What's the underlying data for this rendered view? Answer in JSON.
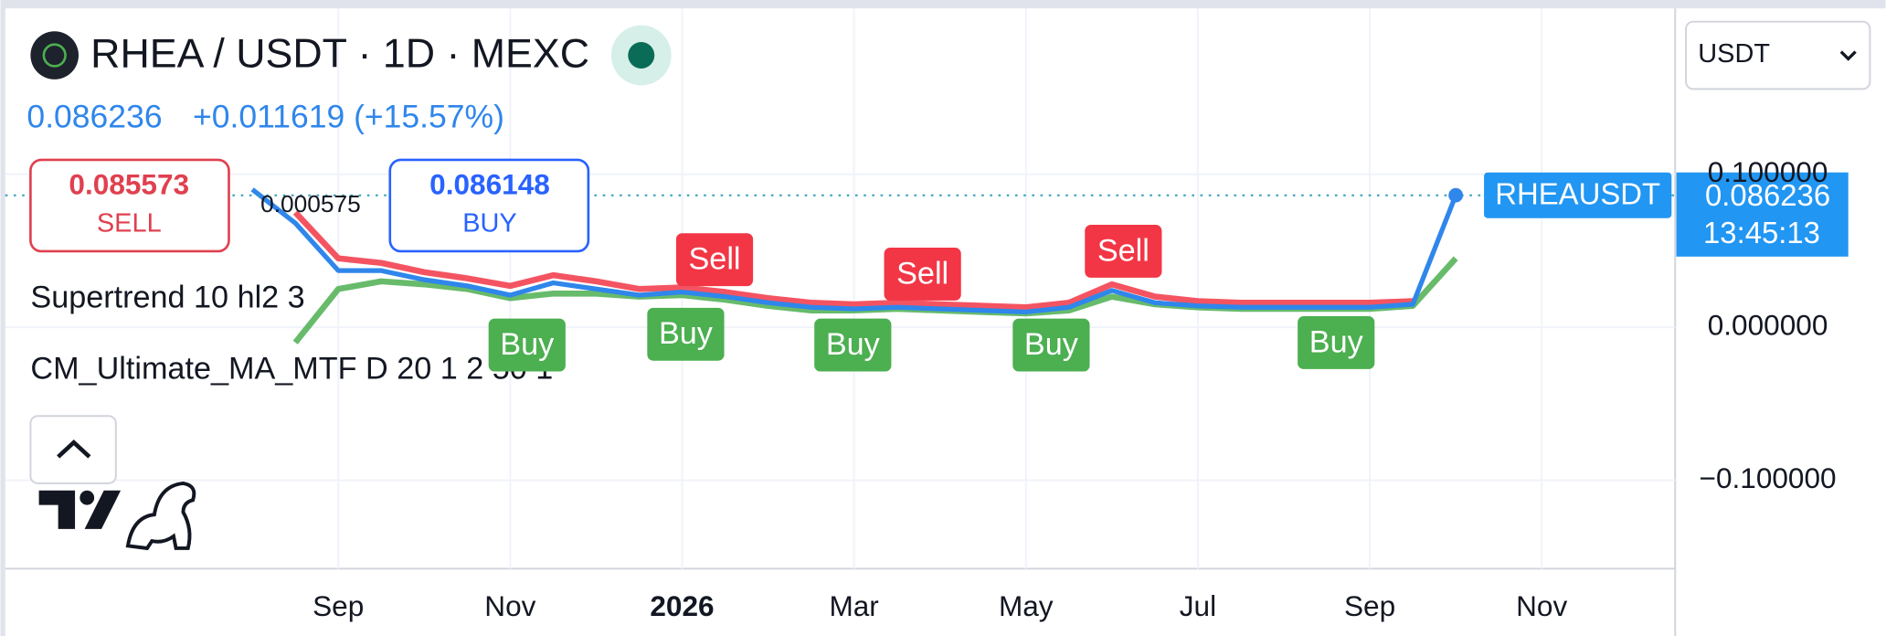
{
  "header": {
    "symbol": "RHEA / USDT · 1D · MEXC",
    "change": "+0.011619 (+15.57%)"
  },
  "order": {
    "sell_price": "0.085573",
    "sell": "SELL",
    "spread": "0.000575",
    "buy_price": "0.086148",
    "buy": "BUY"
  },
  "currency": "USDT",
  "countdown": "13:45:13",
  "chart_data": {
    "type": "line",
    "categories": [
      null,
      null,
      "Sep",
      null,
      null,
      null,
      "Nov",
      null,
      null,
      null,
      "2026",
      null,
      null,
      null,
      "Mar",
      null,
      null,
      null,
      "May",
      null,
      null,
      null,
      "Jul",
      null,
      null,
      null,
      "Sep",
      null,
      null,
      null,
      "Nov",
      null
    ],
    "series": [
      {
        "name": "RHEAUSDT",
        "color": "#2f86eb",
        "values": [
          0.09,
          0.068,
          0.037,
          0.037,
          0.031,
          0.027,
          0.021,
          0.029,
          0.025,
          0.021,
          0.023,
          0.02,
          0.016,
          0.013,
          0.012,
          0.013,
          0.012,
          0.011,
          0.01,
          0.013,
          0.024,
          0.016,
          0.014,
          0.013,
          0.013,
          0.013,
          0.013,
          0.015,
          0.086236,
          null,
          null,
          null
        ]
      },
      {
        "name": "Supertrend 10 hl2 3",
        "color": "#f23645",
        "values": [
          null,
          0.075,
          0.045,
          0.042,
          0.036,
          0.032,
          0.027,
          0.034,
          0.03,
          0.025,
          0.026,
          0.023,
          0.019,
          0.016,
          0.015,
          0.016,
          0.015,
          0.014,
          0.013,
          0.016,
          0.028,
          0.02,
          0.017,
          0.016,
          0.016,
          0.016,
          0.016,
          0.017,
          null,
          null,
          null,
          null
        ]
      },
      {
        "name": "CM_Ultimate_MA_MTF D 20 1 2 50 1",
        "color": "#4caf50",
        "values": [
          null,
          -0.01,
          0.025,
          0.03,
          0.028,
          0.025,
          0.019,
          0.022,
          0.022,
          0.02,
          0.021,
          0.018,
          0.014,
          0.011,
          0.011,
          0.012,
          0.011,
          0.01,
          0.009,
          0.011,
          0.02,
          0.015,
          0.013,
          0.012,
          0.012,
          0.012,
          0.012,
          0.014,
          0.045,
          null,
          null,
          null
        ]
      }
    ],
    "annotations": [
      "Sell",
      "Sell",
      "Sell",
      "Buy",
      "Buy",
      "Buy",
      "Buy",
      "Buy"
    ],
    "ylim": [
      -0.157,
      0.206
    ],
    "yticks": [
      {
        "value": -0.1,
        "label": "−0.100000"
      },
      {
        "value": 0,
        "label": "0.000000"
      },
      {
        "value": 0.1,
        "label": "0.100000"
      }
    ],
    "grid": true
  }
}
